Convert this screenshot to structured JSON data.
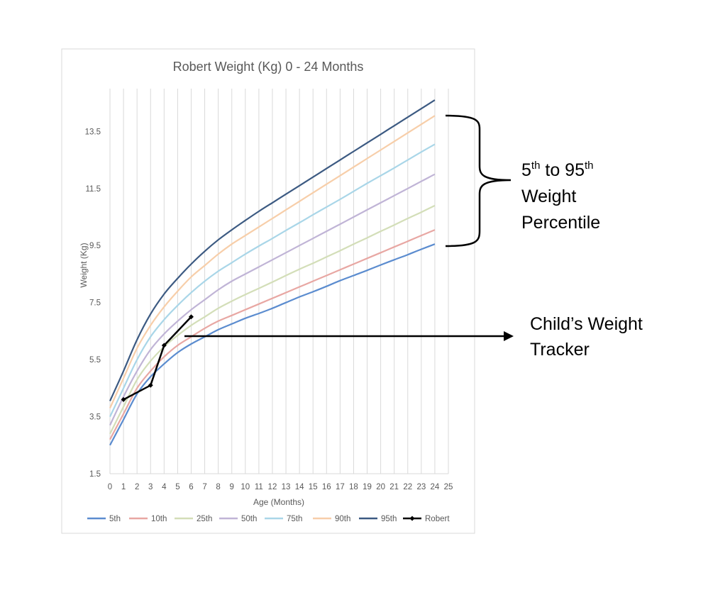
{
  "chart_data": {
    "type": "line",
    "title": "Robert Weight (Kg) 0 - 24 Months",
    "xlabel": "Age (Months)",
    "ylabel": "Weight (Kg)",
    "xlim": [
      0,
      25
    ],
    "ylim": [
      1.5,
      15
    ],
    "x_ticks": [
      0,
      1,
      2,
      3,
      4,
      5,
      6,
      7,
      8,
      9,
      10,
      11,
      12,
      13,
      14,
      15,
      16,
      17,
      18,
      19,
      20,
      21,
      22,
      23,
      24,
      25
    ],
    "y_ticks": [
      1.5,
      3.5,
      5.5,
      7.5,
      9.5,
      11.5,
      13.5
    ],
    "grid": "vertical",
    "legend_position": "bottom",
    "series": [
      {
        "name": "5th",
        "color": "#5b8ccf",
        "x": [
          0,
          1,
          2,
          3,
          4,
          5,
          6,
          7,
          8,
          9,
          10,
          11,
          12,
          13,
          14,
          15,
          16,
          17,
          18,
          19,
          20,
          21,
          22,
          23,
          24
        ],
        "values": [
          2.5,
          3.4,
          4.3,
          4.9,
          5.35,
          5.75,
          6.05,
          6.3,
          6.55,
          6.75,
          6.95,
          7.12,
          7.3,
          7.5,
          7.7,
          7.88,
          8.07,
          8.27,
          8.45,
          8.63,
          8.82,
          9.0,
          9.18,
          9.37,
          9.55
        ]
      },
      {
        "name": "10th",
        "color": "#e8a7a3",
        "x": [
          0,
          1,
          2,
          3,
          4,
          5,
          6,
          7,
          8,
          9,
          10,
          11,
          12,
          13,
          14,
          15,
          16,
          17,
          18,
          19,
          20,
          21,
          22,
          23,
          24
        ],
        "values": [
          2.7,
          3.6,
          4.5,
          5.1,
          5.6,
          6.0,
          6.3,
          6.6,
          6.85,
          7.05,
          7.25,
          7.45,
          7.65,
          7.85,
          8.05,
          8.25,
          8.45,
          8.65,
          8.85,
          9.05,
          9.25,
          9.45,
          9.65,
          9.85,
          10.05
        ]
      },
      {
        "name": "25th",
        "color": "#d3deb8",
        "x": [
          0,
          1,
          2,
          3,
          4,
          5,
          6,
          7,
          8,
          9,
          10,
          11,
          12,
          13,
          14,
          15,
          16,
          17,
          18,
          19,
          20,
          21,
          22,
          23,
          24
        ],
        "values": [
          2.9,
          3.85,
          4.8,
          5.45,
          5.95,
          6.35,
          6.7,
          7.0,
          7.3,
          7.55,
          7.78,
          8.0,
          8.22,
          8.45,
          8.67,
          8.88,
          9.1,
          9.32,
          9.55,
          9.77,
          10.0,
          10.22,
          10.45,
          10.67,
          10.9
        ]
      },
      {
        "name": "50th",
        "color": "#c0b4d6",
        "x": [
          0,
          1,
          2,
          3,
          4,
          5,
          6,
          7,
          8,
          9,
          10,
          11,
          12,
          13,
          14,
          15,
          16,
          17,
          18,
          19,
          20,
          21,
          22,
          23,
          24
        ],
        "values": [
          3.2,
          4.2,
          5.1,
          5.85,
          6.4,
          6.85,
          7.25,
          7.6,
          7.95,
          8.25,
          8.5,
          8.75,
          9.0,
          9.25,
          9.5,
          9.75,
          10.0,
          10.25,
          10.5,
          10.75,
          11.0,
          11.25,
          11.5,
          11.75,
          12.0
        ]
      },
      {
        "name": "75th",
        "color": "#a9d6e8",
        "x": [
          0,
          1,
          2,
          3,
          4,
          5,
          6,
          7,
          8,
          9,
          10,
          11,
          12,
          13,
          14,
          15,
          16,
          17,
          18,
          19,
          20,
          21,
          22,
          23,
          24
        ],
        "values": [
          3.5,
          4.5,
          5.5,
          6.3,
          6.9,
          7.4,
          7.85,
          8.25,
          8.6,
          8.9,
          9.2,
          9.48,
          9.75,
          10.03,
          10.3,
          10.58,
          10.85,
          11.12,
          11.4,
          11.68,
          11.95,
          12.22,
          12.5,
          12.78,
          13.05
        ]
      },
      {
        "name": "90th",
        "color": "#f7cea9",
        "x": [
          0,
          1,
          2,
          3,
          4,
          5,
          6,
          7,
          8,
          9,
          10,
          11,
          12,
          13,
          14,
          15,
          16,
          17,
          18,
          19,
          20,
          21,
          22,
          23,
          24
        ],
        "values": [
          3.8,
          4.85,
          5.9,
          6.7,
          7.35,
          7.9,
          8.4,
          8.8,
          9.2,
          9.55,
          9.85,
          10.15,
          10.45,
          10.75,
          11.05,
          11.35,
          11.65,
          11.95,
          12.25,
          12.55,
          12.85,
          13.15,
          13.45,
          13.75,
          14.05
        ]
      },
      {
        "name": "95th",
        "color": "#3c5a82",
        "x": [
          0,
          1,
          2,
          3,
          4,
          5,
          6,
          7,
          8,
          9,
          10,
          11,
          12,
          13,
          14,
          15,
          16,
          17,
          18,
          19,
          20,
          21,
          22,
          23,
          24
        ],
        "values": [
          4.05,
          5.1,
          6.2,
          7.1,
          7.8,
          8.35,
          8.85,
          9.3,
          9.7,
          10.05,
          10.38,
          10.7,
          11.0,
          11.3,
          11.6,
          11.9,
          12.2,
          12.5,
          12.8,
          13.1,
          13.4,
          13.7,
          14.0,
          14.3,
          14.6
        ]
      },
      {
        "name": "Robert",
        "color": "#000000",
        "markers": true,
        "x": [
          1,
          3,
          4,
          6
        ],
        "values": [
          4.1,
          4.6,
          6.0,
          7.0
        ]
      }
    ],
    "annotations": [
      {
        "id": "percentile-range",
        "parts": [
          {
            "line": 1,
            "text": "5"
          },
          {
            "line": 1,
            "text": "th",
            "sup": true
          },
          {
            "line": 1,
            "text": " to 95"
          },
          {
            "line": 1,
            "text": "th",
            "sup": true
          },
          {
            "line": 2,
            "text": "Weight"
          },
          {
            "line": 3,
            "text": "Percentile"
          }
        ]
      },
      {
        "id": "weight-tracker",
        "parts": [
          {
            "line": 1,
            "text": "Child’s Weight"
          },
          {
            "line": 2,
            "text": "Tracker"
          }
        ]
      }
    ]
  }
}
